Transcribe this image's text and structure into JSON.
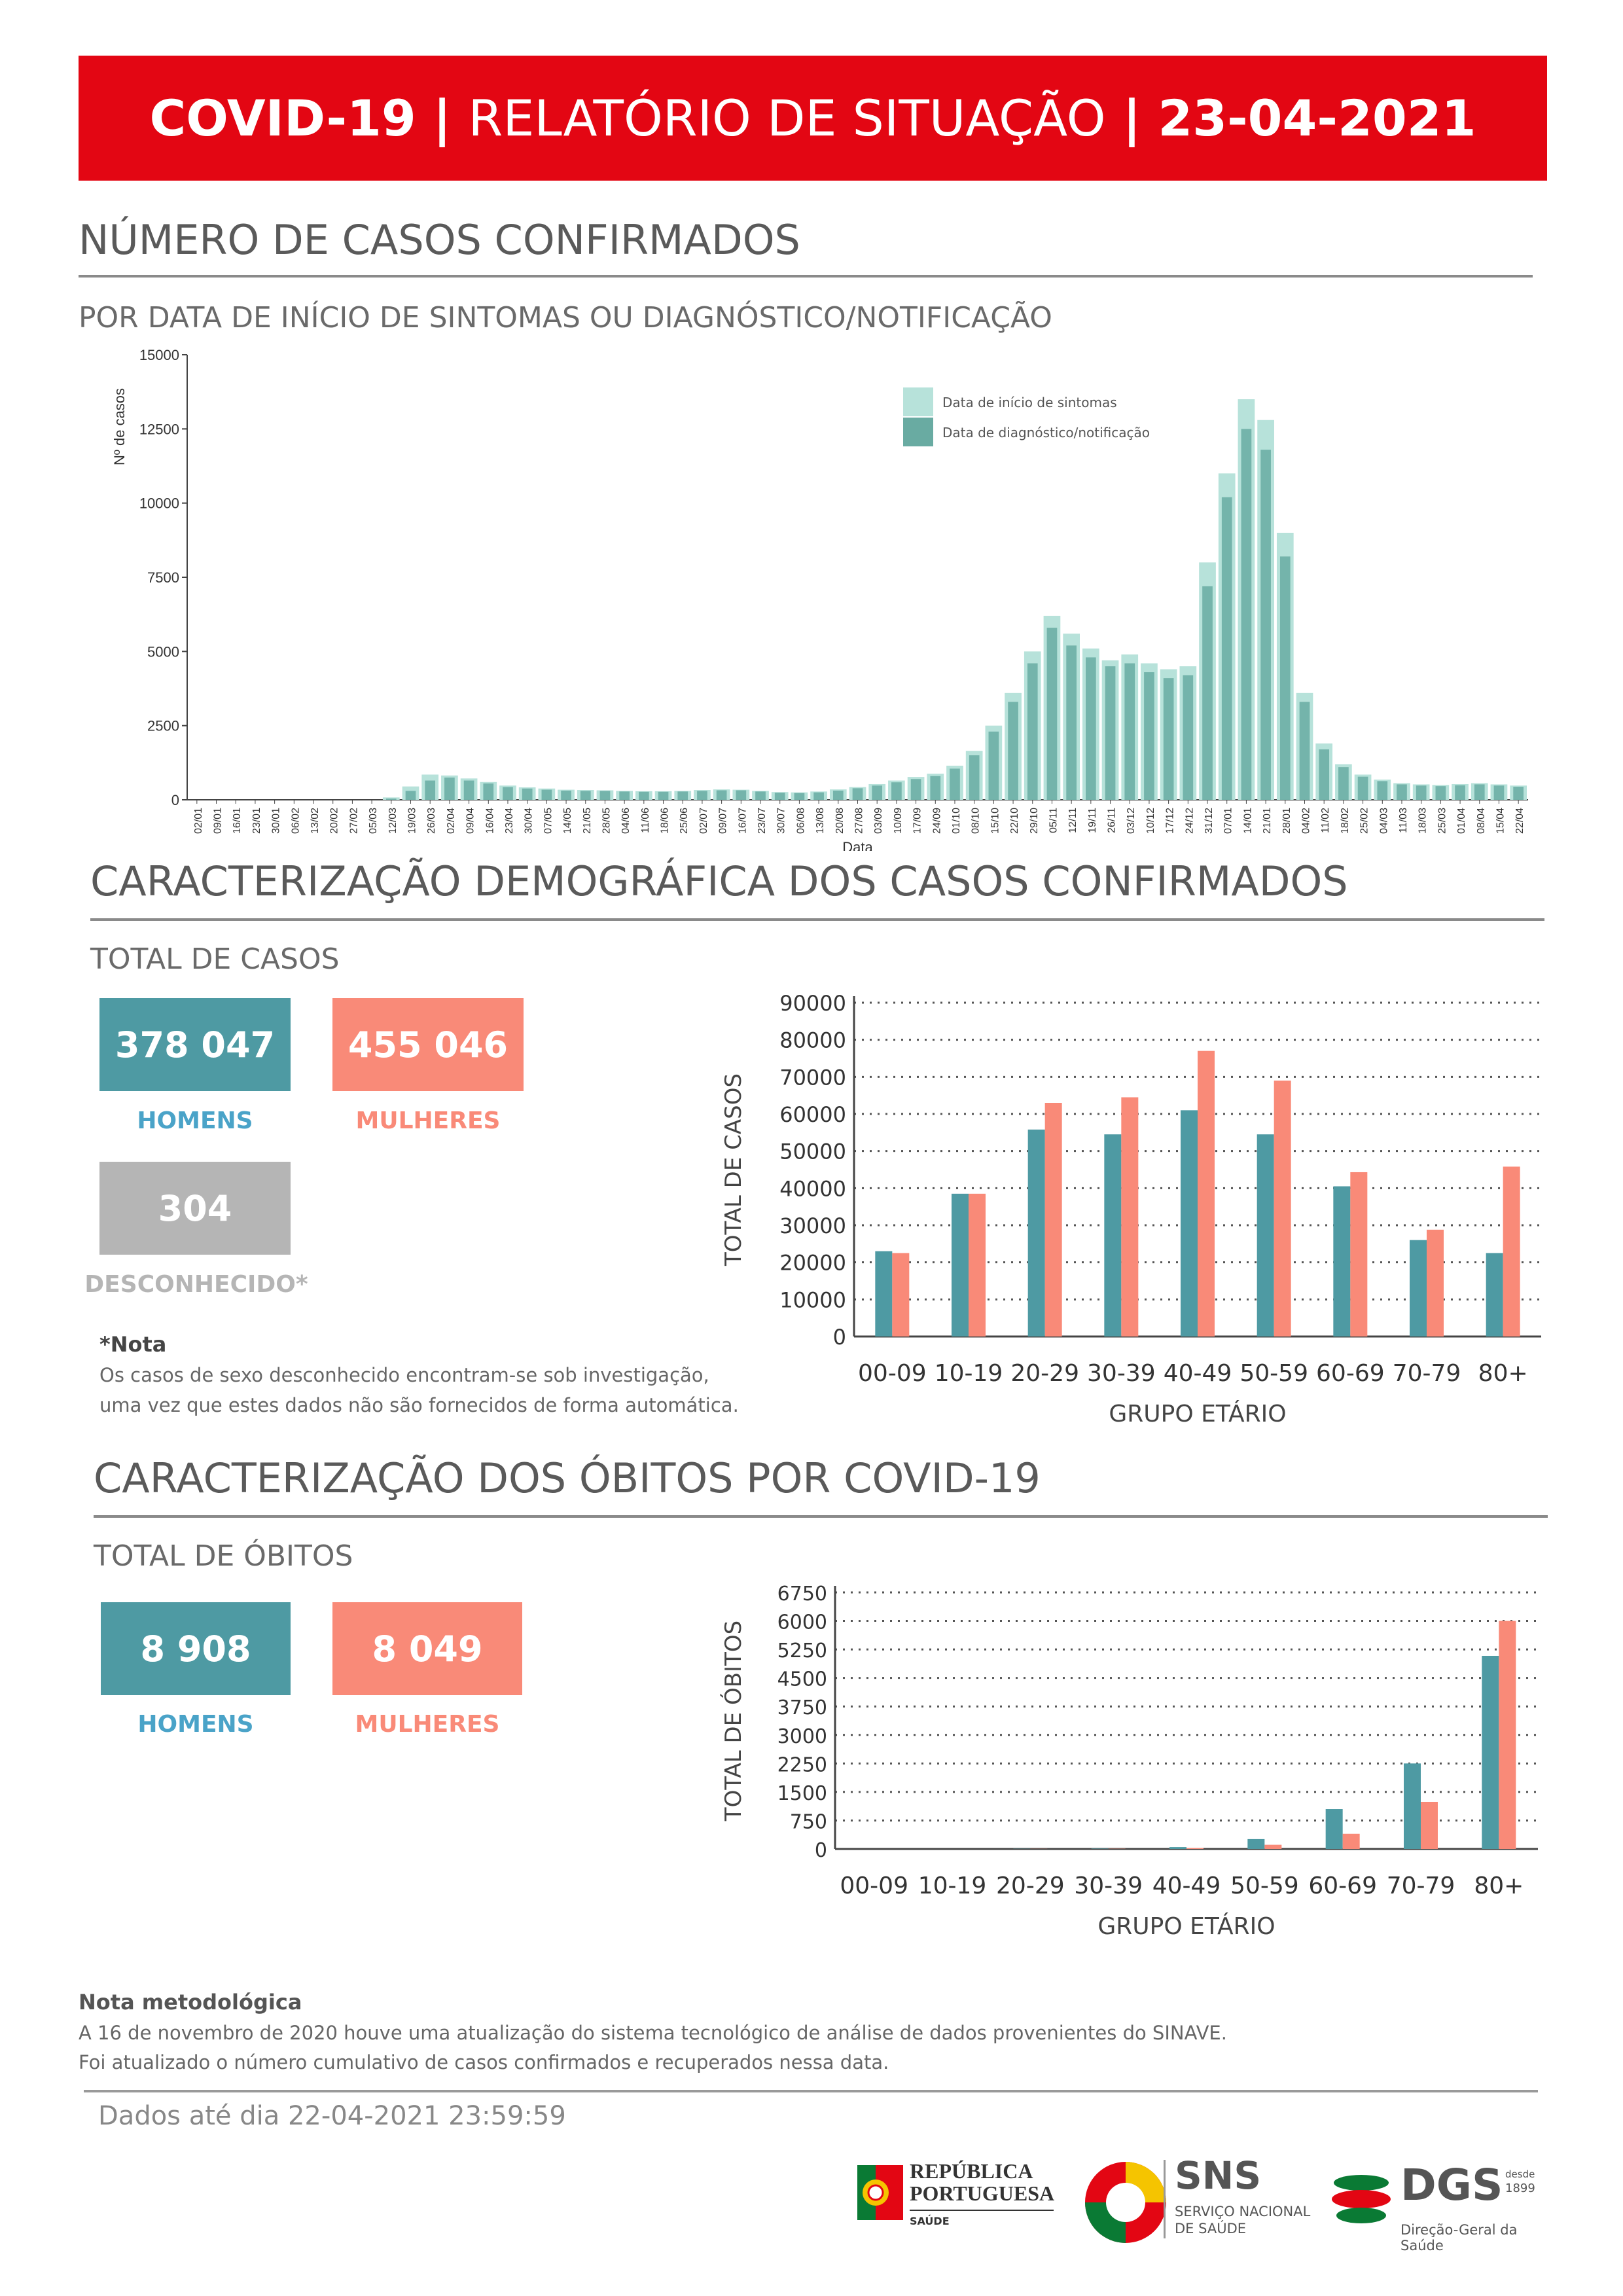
{
  "banner": {
    "part1": "COVID-19",
    "sep1": "|",
    "part2": "RELATÓRIO DE SITUAÇÃO",
    "sep2": "|",
    "date": "23-04-2021"
  },
  "section1": {
    "title": "NÚMERO DE CASOS CONFIRMADOS",
    "subtitle": "POR DATA DE INÍCIO DE SINTOMAS OU DIAGNÓSTICO/NOTIFICAÇÃO"
  },
  "section2": {
    "title": "CARACTERIZAÇÃO DEMOGRÁFICA DOS CASOS CONFIRMADOS",
    "subtitle": "TOTAL DE CASOS",
    "men_value": "378 047",
    "men_label": "HOMENS",
    "women_value": "455 046",
    "women_label": "MULHERES",
    "unknown_value": "304",
    "unknown_label": "DESCONHECIDO*",
    "note_title": "*Nota",
    "note_line1": "Os casos de sexo desconhecido encontram-se sob investigação,",
    "note_line2": "uma vez que estes dados não são fornecidos de forma automática."
  },
  "section3": {
    "title": "CARACTERIZAÇÃO DOS ÓBITOS POR COVID-19",
    "subtitle": "TOTAL DE ÓBITOS",
    "men_value": "8 908",
    "men_label": "HOMENS",
    "women_value": "8 049",
    "women_label": "MULHERES"
  },
  "method": {
    "title": "Nota metodológica",
    "line1": "A 16 de novembro de 2020 houve uma atualização do sistema tecnológico de análise de dados provenientes do SINAVE.",
    "line2": "Foi atualizado o número cumulativo de casos confirmados e recuperados nessa data."
  },
  "footer": {
    "data_until": "Dados até dia 22-04-2021 23:59:59",
    "logo_rp_line1": "REPÚBLICA",
    "logo_rp_line2": "PORTUGUESA",
    "logo_rp_line3": "SAÚDE",
    "logo_sns": "SNS",
    "logo_sns_sub1": "SERVIÇO NACIONAL",
    "logo_sns_sub2": "DE SAÚDE",
    "logo_dgs": "DGS",
    "logo_dgs_since": "desde",
    "logo_dgs_year": "1899",
    "logo_dgs_sub": "Direção-Geral da Saúde"
  },
  "colors": {
    "red": "#e30613",
    "teal": "#4e9aa3",
    "salmon": "#f98a78",
    "grey": "#b5b5b5",
    "light_teal": "#b7e2da",
    "mid_teal": "#69aba2"
  },
  "chart_data": [
    {
      "type": "bar",
      "title": "",
      "xlabel": "Data",
      "ylabel": "Nº de casos",
      "ylim": [
        0,
        15000
      ],
      "yticks": [
        0,
        2500,
        5000,
        7500,
        10000,
        12500,
        15000
      ],
      "x_tick_labels": [
        "02/01",
        "09/01",
        "16/01",
        "23/01",
        "30/01",
        "06/02",
        "13/02",
        "20/02",
        "27/02",
        "05/03",
        "12/03",
        "19/03",
        "26/03",
        "02/04",
        "09/04",
        "16/04",
        "23/04",
        "30/04",
        "07/05",
        "14/05",
        "21/05",
        "28/05",
        "04/06",
        "11/06",
        "18/06",
        "25/06",
        "02/07",
        "09/07",
        "16/07",
        "23/07",
        "30/07",
        "06/08",
        "13/08",
        "20/08",
        "27/08",
        "03/09",
        "10/09",
        "17/09",
        "24/09",
        "01/10",
        "08/10",
        "15/10",
        "22/10",
        "29/10",
        "05/11",
        "12/11",
        "19/11",
        "26/11",
        "03/12",
        "10/12",
        "17/12",
        "24/12",
        "31/12",
        "07/01",
        "14/01",
        "21/01",
        "28/01",
        "04/02",
        "11/02",
        "18/02",
        "25/02",
        "04/03",
        "11/03",
        "18/03",
        "25/03",
        "01/04",
        "08/04",
        "15/04",
        "22/04"
      ],
      "series": [
        {
          "name": "Data de início de sintomas",
          "values": [
            0,
            0,
            0,
            0,
            0,
            0,
            0,
            0,
            0,
            0,
            80,
            450,
            850,
            820,
            720,
            600,
            480,
            420,
            380,
            340,
            330,
            320,
            300,
            290,
            290,
            300,
            330,
            350,
            340,
            300,
            260,
            250,
            280,
            350,
            430,
            530,
            650,
            770,
            880,
            1150,
            1650,
            2500,
            3600,
            5000,
            6200,
            5600,
            5100,
            4700,
            4900,
            4600,
            4400,
            4500,
            8000,
            11000,
            13500,
            12800,
            9000,
            3600,
            1900,
            1200,
            850,
            680,
            560,
            520,
            500,
            530,
            560,
            520,
            480
          ]
        },
        {
          "name": "Data de diagnóstico/notificação",
          "values": [
            0,
            0,
            0,
            0,
            0,
            0,
            0,
            0,
            0,
            0,
            40,
            300,
            650,
            750,
            650,
            550,
            430,
            380,
            340,
            310,
            300,
            300,
            280,
            270,
            270,
            280,
            300,
            320,
            320,
            280,
            240,
            230,
            250,
            310,
            390,
            480,
            590,
            700,
            800,
            1050,
            1500,
            2300,
            3300,
            4600,
            5800,
            5200,
            4800,
            4500,
            4600,
            4300,
            4100,
            4200,
            7200,
            10200,
            12500,
            11800,
            8200,
            3300,
            1700,
            1100,
            780,
            630,
            520,
            480,
            460,
            490,
            520,
            480,
            440
          ]
        }
      ]
    },
    {
      "type": "bar",
      "title": "",
      "xlabel": "GRUPO ETÁRIO",
      "ylabel": "TOTAL DE CASOS",
      "ylim": [
        0,
        90000
      ],
      "yticks": [
        0,
        10000,
        20000,
        30000,
        40000,
        50000,
        60000,
        70000,
        80000,
        90000
      ],
      "categories": [
        "00-09",
        "10-19",
        "20-29",
        "30-39",
        "40-49",
        "50-59",
        "60-69",
        "70-79",
        "80+"
      ],
      "series": [
        {
          "name": "HOMENS",
          "values": [
            23000,
            38500,
            55800,
            54500,
            61000,
            54500,
            40500,
            26000,
            22500
          ]
        },
        {
          "name": "MULHERES",
          "values": [
            22500,
            38500,
            63000,
            64500,
            77000,
            69000,
            44300,
            28800,
            45800
          ]
        }
      ]
    },
    {
      "type": "bar",
      "title": "",
      "xlabel": "GRUPO ETÁRIO",
      "ylabel": "TOTAL DE ÓBITOS",
      "ylim": [
        0,
        6750
      ],
      "yticks": [
        0,
        750,
        1500,
        2250,
        3000,
        3750,
        4500,
        5250,
        6000,
        6750
      ],
      "categories": [
        "00-09",
        "10-19",
        "20-29",
        "30-39",
        "40-49",
        "50-59",
        "60-69",
        "70-79",
        "80+"
      ],
      "series": [
        {
          "name": "HOMENS",
          "values": [
            0,
            0,
            5,
            10,
            50,
            260,
            1050,
            2250,
            5080
          ]
        },
        {
          "name": "MULHERES",
          "values": [
            0,
            0,
            3,
            6,
            25,
            110,
            400,
            1240,
            6000
          ]
        }
      ]
    }
  ]
}
